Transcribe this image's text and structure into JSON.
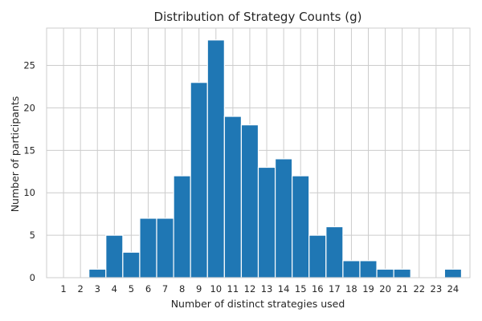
{
  "chart_data": {
    "type": "bar",
    "title": "Distribution of Strategy Counts (g)",
    "xlabel": "Number of distinct strategies used",
    "ylabel": "Number of participants",
    "categories": [
      "1",
      "2",
      "3",
      "4",
      "5",
      "6",
      "7",
      "8",
      "9",
      "10",
      "11",
      "12",
      "13",
      "14",
      "15",
      "16",
      "17",
      "18",
      "19",
      "20",
      "21",
      "22",
      "23",
      "24"
    ],
    "values": [
      0,
      0,
      1,
      5,
      3,
      7,
      7,
      12,
      23,
      28,
      19,
      18,
      13,
      14,
      12,
      5,
      6,
      2,
      2,
      1,
      1,
      0,
      0,
      1
    ],
    "yticks": [
      0,
      5,
      10,
      15,
      20,
      25
    ],
    "ylim": [
      0,
      29.4
    ],
    "grid": true,
    "colors": {
      "bar": "#1f77b4",
      "grid": "#cccccc"
    }
  }
}
